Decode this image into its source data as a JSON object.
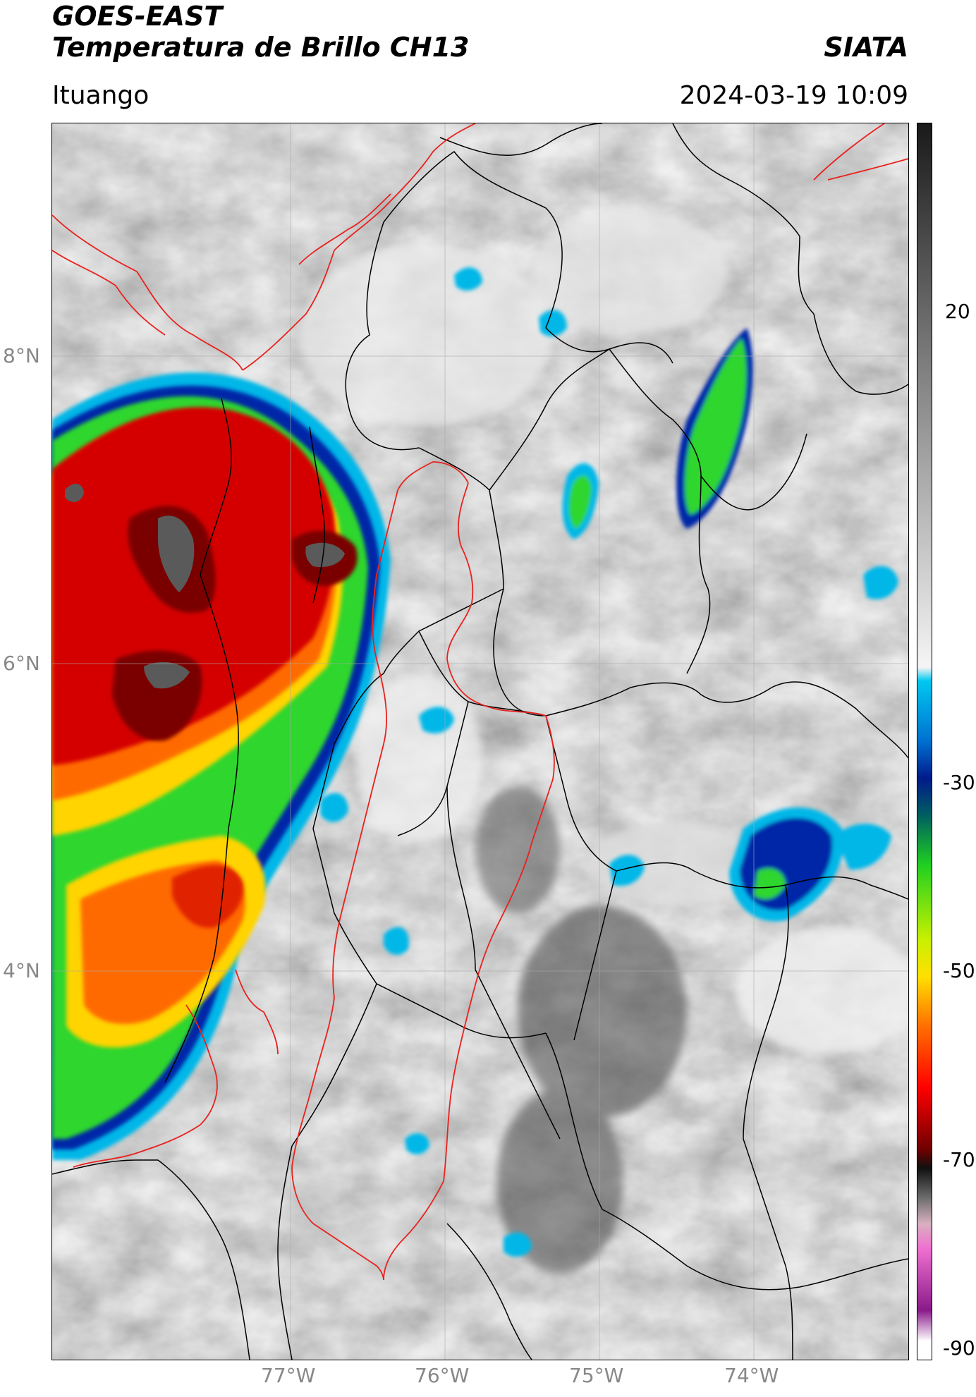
{
  "header": {
    "satellite": "GOES-EAST",
    "product": "Temperatura de Brillo CH13",
    "agency": "SIATA",
    "location": "Ituango",
    "datetime": "2024-03-19 10:09"
  },
  "map": {
    "lat_labels": [
      "8°N",
      "6°N",
      "4°N"
    ],
    "lon_labels": [
      "77°W",
      "76°W",
      "75°W",
      "74°W"
    ],
    "palette": {
      "cold_core": "#4a0000",
      "red": "#d40000",
      "orange": "#ff6a00",
      "yellow": "#ffd400",
      "green": "#2fd62f",
      "blue": "#0026a8",
      "cyan": "#00b7e8",
      "border_country": "#e8221e",
      "border_dept": "#000000"
    }
  },
  "colorbar": {
    "ticks": [
      "20",
      "-30",
      "-50",
      "-70",
      "-90"
    ],
    "range": [
      -90,
      40
    ]
  }
}
